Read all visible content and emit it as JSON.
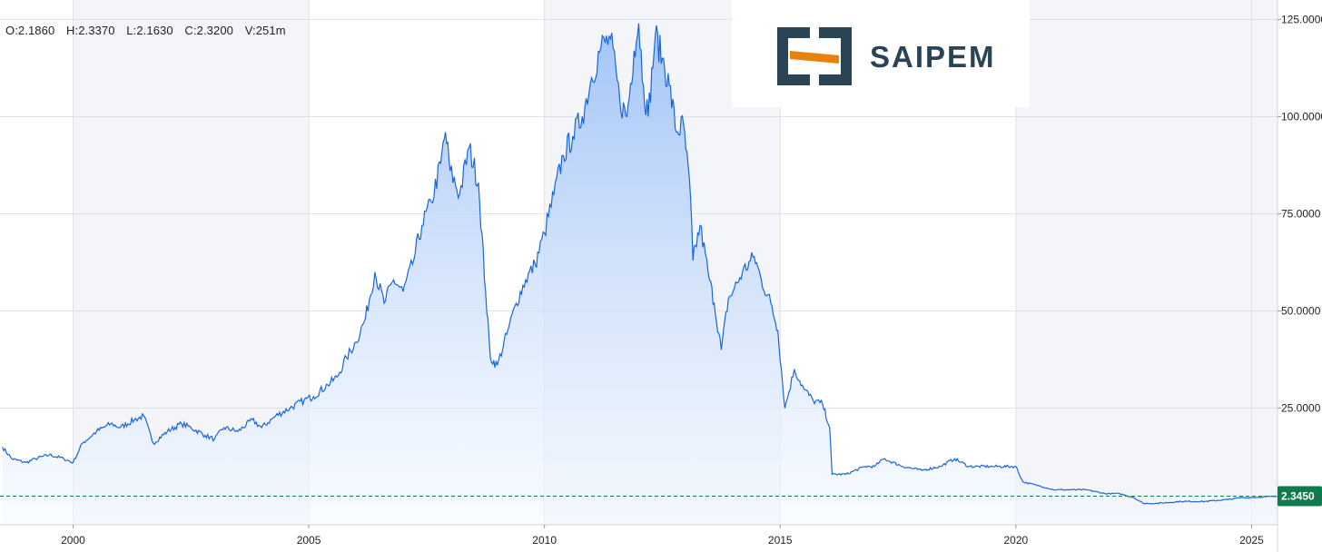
{
  "ohlc": {
    "open": "O:2.1860",
    "high": "H:2.3370",
    "low": "L:2.1630",
    "close": "C:2.3200",
    "volume": "V:251m"
  },
  "logo": {
    "name": "SAIPEM",
    "icon": "saipem-logo-icon",
    "accent_color": "#e8820c",
    "brand_color": "#2a4455"
  },
  "current_price": {
    "label": "2.3450",
    "value": 2.345,
    "color": "#0f7b4b"
  },
  "colors": {
    "line": "#1a66d9",
    "fill_top": "#9ec2f7",
    "fill_bottom": "#f5f9ff",
    "grid": "#dde1ea",
    "shade": "#f3f5f9"
  },
  "chart_data": {
    "type": "area",
    "title": "",
    "xlabel": "",
    "ylabel": "",
    "xlim": [
      1998.45,
      2025.55
    ],
    "ylim": [
      -5,
      130
    ],
    "grid": true,
    "y_axis_side": "right",
    "x_ticks": [
      2000,
      2005,
      2010,
      2015,
      2020,
      2025
    ],
    "x_tick_labels": [
      "2000",
      "2005",
      "2010",
      "2015",
      "2020",
      "2025"
    ],
    "y_ticks": [
      25,
      50,
      75,
      100,
      125
    ],
    "y_tick_labels": [
      "25.0000",
      "50.0000",
      "75.0000",
      "100.0000",
      "125.0000"
    ],
    "series": [
      {
        "x": [
          1998.5,
          1998.7,
          1999.0,
          1999.2,
          1999.5,
          1999.8,
          2000.0,
          2000.2,
          2000.5,
          2000.8,
          2001.0,
          2001.3,
          2001.5,
          2001.7,
          2002.0,
          2002.3,
          2002.5,
          2002.8,
          2003.0,
          2003.2,
          2003.5,
          2003.8,
          2004.0,
          2004.3,
          2004.6,
          2004.9,
          2005.1,
          2005.4,
          2005.6,
          2005.8,
          2006.0,
          2006.2,
          2006.4,
          2006.6,
          2006.8,
          2007.0,
          2007.2,
          2007.4,
          2007.6,
          2007.8,
          2007.9,
          2008.0,
          2008.2,
          2008.4,
          2008.6,
          2008.75,
          2008.85,
          2009.0,
          2009.2,
          2009.4,
          2009.6,
          2009.8,
          2010.0,
          2010.2,
          2010.4,
          2010.6,
          2010.8,
          2011.0,
          2011.2,
          2011.4,
          2011.6,
          2011.75,
          2011.9,
          2012.0,
          2012.1,
          2012.2,
          2012.35,
          2012.5,
          2012.65,
          2012.8,
          2012.95,
          2013.1,
          2013.15,
          2013.3,
          2013.5,
          2013.6,
          2013.75,
          2013.9,
          2014.0,
          2014.2,
          2014.45,
          2014.6,
          2014.8,
          2014.95,
          2015.1,
          2015.3,
          2015.5,
          2015.7,
          2015.9,
          2016.05,
          2016.1,
          2016.4,
          2016.8,
          2017.0,
          2017.2,
          2017.6,
          2018.0,
          2018.4,
          2018.7,
          2019.0,
          2019.5,
          2020.0,
          2020.15,
          2020.5,
          2020.8,
          2021.0,
          2021.5,
          2021.9,
          2022.2,
          2022.5,
          2022.7,
          2023.0,
          2023.5,
          2024.0,
          2024.5,
          2024.8,
          2025.0,
          2025.3,
          2025.55
        ],
        "y": [
          15,
          12,
          11,
          12,
          13,
          12,
          11,
          16,
          19,
          21,
          20,
          22,
          23,
          16,
          19,
          21,
          20,
          18,
          17,
          20,
          19,
          22,
          20,
          23,
          25,
          27,
          28,
          31,
          33,
          38,
          42,
          48,
          60,
          52,
          58,
          55,
          62,
          72,
          78,
          88,
          96,
          86,
          80,
          92,
          83,
          55,
          38,
          36,
          44,
          52,
          58,
          62,
          70,
          80,
          90,
          95,
          100,
          110,
          118,
          120,
          104,
          100,
          117,
          124,
          108,
          100,
          121,
          115,
          108,
          96,
          98,
          79,
          63,
          72,
          58,
          52,
          40,
          53,
          55,
          60,
          64,
          58,
          52,
          45,
          25,
          35,
          30,
          27,
          26,
          20,
          8,
          8,
          10,
          10,
          12,
          10,
          9,
          10,
          12,
          10,
          10,
          10,
          6,
          5,
          4,
          4,
          4,
          3,
          3,
          2,
          0.5,
          0.5,
          1,
          1,
          1.5,
          2,
          2,
          2.2,
          2.3
        ]
      }
    ]
  }
}
